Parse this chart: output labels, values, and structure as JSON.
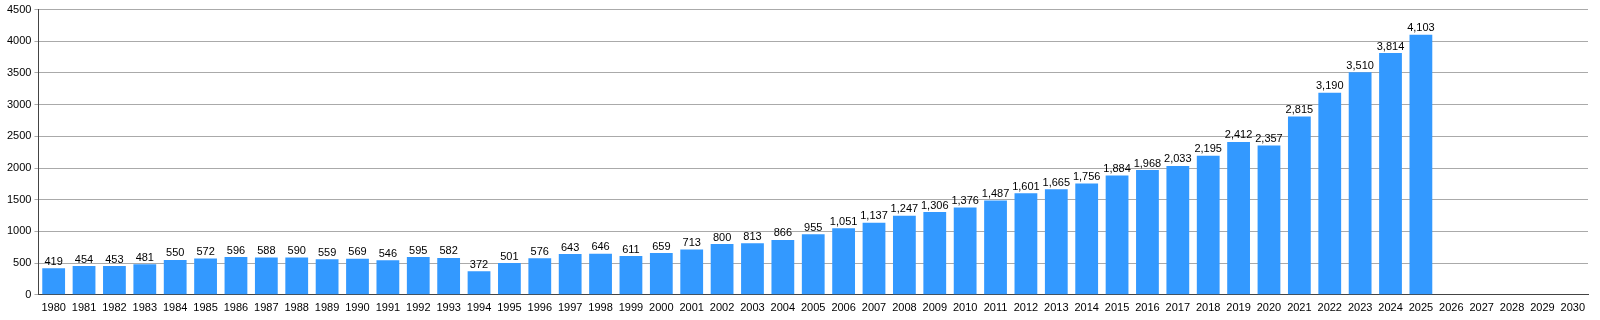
{
  "chart_data": {
    "type": "bar",
    "categories": [
      "1980",
      "1981",
      "1982",
      "1983",
      "1984",
      "1985",
      "1986",
      "1987",
      "1988",
      "1989",
      "1990",
      "1991",
      "1992",
      "1993",
      "1994",
      "1995",
      "1996",
      "1997",
      "1998",
      "1999",
      "2000",
      "2001",
      "2002",
      "2003",
      "2004",
      "2005",
      "2006",
      "2007",
      "2008",
      "2009",
      "2010",
      "2011",
      "2012",
      "2013",
      "2014",
      "2015",
      "2016",
      "2017",
      "2018",
      "2019",
      "2020",
      "2021",
      "2022",
      "2023",
      "2024",
      "2025",
      "2026",
      "2027",
      "2028",
      "2029",
      "2030"
    ],
    "values": [
      419,
      454,
      453,
      481,
      550,
      572,
      596,
      588,
      590,
      559,
      569,
      546,
      595,
      582,
      372,
      501,
      576,
      643,
      646,
      611,
      659,
      713,
      800,
      813,
      866,
      955,
      1051,
      1137,
      1247,
      1306,
      1376,
      1487,
      1601,
      1665,
      1756,
      1884,
      1968,
      2033,
      2195,
      2412,
      2357,
      2815,
      3190,
      3510,
      3814,
      4103,
      null,
      null,
      null,
      null,
      null
    ],
    "value_labels": [
      "419",
      "454",
      "453",
      "481",
      "550",
      "572",
      "596",
      "588",
      "590",
      "559",
      "569",
      "546",
      "595",
      "582",
      "372",
      "501",
      "576",
      "643",
      "646",
      "611",
      "659",
      "713",
      "800",
      "813",
      "866",
      "955",
      "1,051",
      "1,137",
      "1,247",
      "1,306",
      "1,376",
      "1,487",
      "1,601",
      "1,665",
      "1,756",
      "1,884",
      "1,968",
      "2,033",
      "2,195",
      "2,412",
      "2,357",
      "2,815",
      "3,190",
      "3,510",
      "3,814",
      "4,103",
      null,
      null,
      null,
      null,
      null
    ],
    "color": "#3399ff",
    "ylim": [
      0,
      4500
    ],
    "yticks": [
      0,
      500,
      1000,
      1500,
      2000,
      2500,
      3000,
      3500,
      4000,
      4500
    ],
    "grid": "y"
  }
}
